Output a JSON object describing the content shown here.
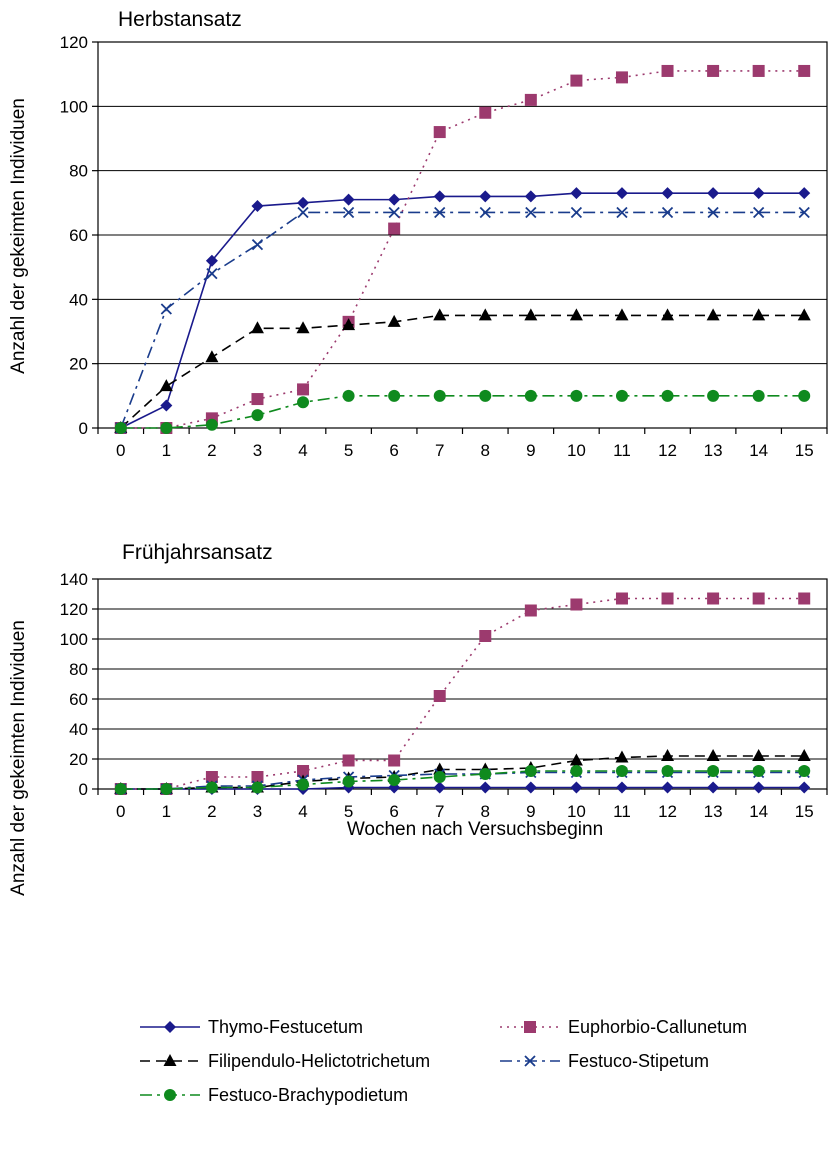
{
  "chart_data": [
    {
      "type": "line",
      "title": "Herbstansatz",
      "xlabel": "",
      "ylabel": "Anzahl der gekeimten Individuen",
      "x": [
        0,
        1,
        2,
        3,
        4,
        5,
        6,
        7,
        8,
        9,
        10,
        11,
        12,
        13,
        14,
        15
      ],
      "ylim": [
        0,
        120
      ],
      "yticks": [
        0,
        20,
        40,
        60,
        80,
        100,
        120
      ],
      "grid": "horizontal",
      "series": [
        {
          "name": "Thymo-Festucetum",
          "values": [
            0,
            7,
            52,
            69,
            70,
            71,
            71,
            72,
            72,
            72,
            73,
            73,
            73,
            73,
            73,
            73
          ]
        },
        {
          "name": "Euphorbio-Callunetum",
          "values": [
            0,
            0,
            3,
            9,
            12,
            33,
            62,
            92,
            98,
            102,
            108,
            109,
            111,
            111,
            111,
            111
          ]
        },
        {
          "name": "Filipendulo-Helictotrichetum",
          "values": [
            0,
            13,
            22,
            31,
            31,
            32,
            33,
            35,
            35,
            35,
            35,
            35,
            35,
            35,
            35,
            35
          ]
        },
        {
          "name": "Festuco-Stipetum",
          "values": [
            0,
            37,
            48,
            57,
            67,
            67,
            67,
            67,
            67,
            67,
            67,
            67,
            67,
            67,
            67,
            67
          ]
        },
        {
          "name": "Festuco-Brachypodietum",
          "values": [
            0,
            0,
            1,
            4,
            8,
            10,
            10,
            10,
            10,
            10,
            10,
            10,
            10,
            10,
            10,
            10
          ]
        }
      ]
    },
    {
      "type": "line",
      "title": "Frühjahrsansatz",
      "xlabel": "Wochen nach Versuchsbeginn",
      "ylabel": "Anzahl der gekeimten Individuen",
      "x": [
        0,
        1,
        2,
        3,
        4,
        5,
        6,
        7,
        8,
        9,
        10,
        11,
        12,
        13,
        14,
        15
      ],
      "ylim": [
        0,
        140
      ],
      "yticks": [
        0,
        20,
        40,
        60,
        80,
        100,
        120,
        140
      ],
      "grid": "horizontal",
      "series": [
        {
          "name": "Thymo-Festucetum",
          "values": [
            0,
            0,
            0,
            0,
            0,
            1,
            1,
            1,
            1,
            1,
            1,
            1,
            1,
            1,
            1,
            1
          ]
        },
        {
          "name": "Euphorbio-Callunetum",
          "values": [
            0,
            0,
            8,
            8,
            12,
            19,
            19,
            62,
            102,
            119,
            123,
            127,
            127,
            127,
            127,
            127
          ]
        },
        {
          "name": "Filipendulo-Helictotrichetum",
          "values": [
            0,
            0,
            1,
            1,
            5,
            7,
            8,
            13,
            13,
            14,
            19,
            21,
            22,
            22,
            22,
            22
          ]
        },
        {
          "name": "Festuco-Stipetum",
          "values": [
            0,
            0,
            2,
            2,
            6,
            8,
            9,
            10,
            10,
            11,
            11,
            11,
            11,
            11,
            11,
            11
          ]
        },
        {
          "name": "Festuco-Brachypodietum",
          "values": [
            0,
            0,
            1,
            1,
            3,
            5,
            6,
            8,
            10,
            12,
            12,
            12,
            12,
            12,
            12,
            12
          ]
        }
      ]
    }
  ],
  "legend": {
    "placement": "bottom",
    "entries": [
      {
        "name": "Thymo-Festucetum",
        "color": "#1a1a8c",
        "marker": "diamond",
        "dash": "solid"
      },
      {
        "name": "Euphorbio-Callunetum",
        "color": "#9c3a6e",
        "marker": "square",
        "dash": "dotted"
      },
      {
        "name": "Filipendulo-Helictotrichetum",
        "color": "#000000",
        "marker": "triangle",
        "dash": "dashed"
      },
      {
        "name": "Festuco-Stipetum",
        "color": "#1a3c8c",
        "marker": "x",
        "dash": "dashdot"
      },
      {
        "name": "Festuco-Brachypodietum",
        "color": "#0f8a1e",
        "marker": "circle",
        "dash": "dashdot"
      }
    ]
  }
}
